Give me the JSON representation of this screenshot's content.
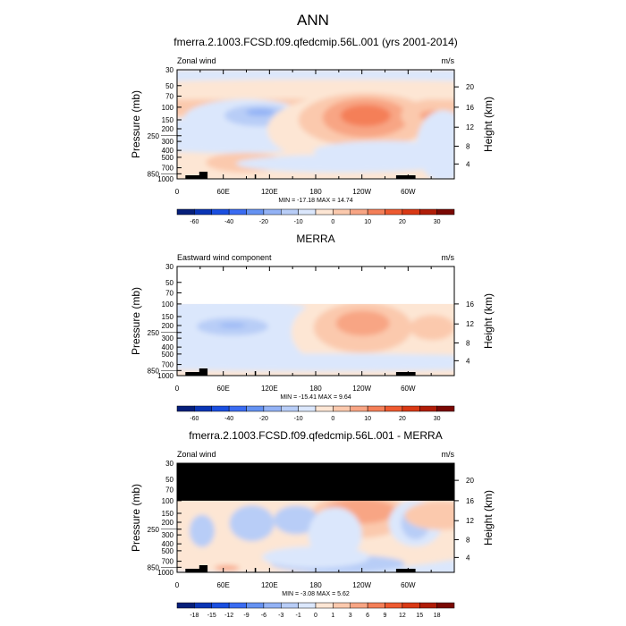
{
  "main_title": "ANN",
  "colors": [
    "#061f7a",
    "#0a35b5",
    "#1a4fe0",
    "#3a6cf2",
    "#6592f2",
    "#93b2f5",
    "#b8cdf7",
    "#dbe7fc",
    "#fde6d4",
    "#fbc9ad",
    "#f8a584",
    "#f47f58",
    "#ee5a30",
    "#d93915",
    "#b01d08",
    "#7a0803"
  ],
  "panels": [
    {
      "title": "fmerra.2.1003.FCSD.f09.qfedcmip.56L.001 (yrs 2001-2014)",
      "left_label": "Zonal wind",
      "right_label": "m/s",
      "stats": "MIN = -17.18  MAX =  14.74",
      "colorbar_labels": [
        "-60",
        "-40",
        "-20",
        "-10",
        "0",
        "10",
        "20",
        "30"
      ],
      "mask": "none"
    },
    {
      "title": "MERRA",
      "left_label": "Eastward wind component",
      "right_label": "m/s",
      "stats": "MIN = -15.41  MAX =   9.64",
      "colorbar_labels": [
        "-60",
        "-40",
        "-20",
        "-10",
        "0",
        "10",
        "20",
        "30"
      ],
      "mask": "blank-above-100"
    },
    {
      "title": "fmerra.2.1003.FCSD.f09.qfedcmip.56L.001 - MERRA",
      "left_label": "Zonal wind",
      "right_label": "m/s",
      "stats": "MIN =  -3.08  MAX =   5.62",
      "colorbar_labels": [
        "-18",
        "-15",
        "-12",
        "-9",
        "-6",
        "-3",
        "-1",
        "0",
        "1",
        "3",
        "6",
        "9",
        "12",
        "15",
        "18"
      ],
      "mask": "black-above-100"
    }
  ],
  "chart_data": {
    "type": "heatmap",
    "ylabel": "Pressure (mb)",
    "ylabel_right": "Height (km)",
    "y_ticks": [
      30,
      50,
      70,
      100,
      150,
      200,
      250,
      300,
      400,
      500,
      700,
      850,
      1000
    ],
    "y_right_ticks": [
      {
        "label": "20",
        "p": 52
      },
      {
        "label": "16",
        "p": 100
      },
      {
        "label": "12",
        "p": 190
      },
      {
        "label": "8",
        "p": 350
      },
      {
        "label": "4",
        "p": 620
      }
    ],
    "x_tick_labels": [
      "0",
      "60E",
      "120E",
      "180",
      "120W",
      "60W"
    ],
    "x_range": [
      0,
      360
    ]
  }
}
